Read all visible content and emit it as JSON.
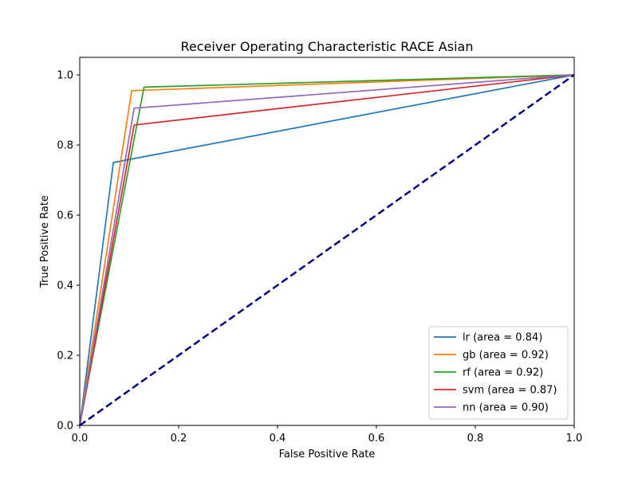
{
  "chart_data": {
    "type": "line",
    "title": "Receiver Operating Characteristic RACE  Asian",
    "xlabel": "False Positive Rate",
    "ylabel": "True Positive Rate",
    "xlim": [
      0.0,
      1.0
    ],
    "ylim": [
      0.0,
      1.05
    ],
    "x_ticks": [
      "0.0",
      "0.2",
      "0.4",
      "0.6",
      "0.8",
      "1.0"
    ],
    "y_ticks": [
      "0.0",
      "0.2",
      "0.4",
      "0.6",
      "0.8",
      "1.0"
    ],
    "grid": false,
    "legend_position": "lower-right",
    "series": [
      {
        "name": "lr (area = 0.84)",
        "color": "#1f77b4",
        "x": [
          0.0,
          0.068,
          1.0
        ],
        "y": [
          0.0,
          0.75,
          1.0
        ]
      },
      {
        "name": "gb (area = 0.92)",
        "color": "#ff7f0e",
        "x": [
          0.0,
          0.105,
          1.0
        ],
        "y": [
          0.0,
          0.955,
          1.0
        ]
      },
      {
        "name": "rf (area = 0.92)",
        "color": "#2ca02c",
        "x": [
          0.0,
          0.13,
          1.0
        ],
        "y": [
          0.0,
          0.965,
          1.0
        ]
      },
      {
        "name": "svm (area = 0.87)",
        "color": "#d62728",
        "x": [
          0.0,
          0.11,
          1.0
        ],
        "y": [
          0.0,
          0.857,
          1.0
        ]
      },
      {
        "name": "nn (area = 0.90)",
        "color": "#9467bd",
        "x": [
          0.0,
          0.11,
          1.0
        ],
        "y": [
          0.0,
          0.905,
          1.0
        ]
      }
    ],
    "reference_line": {
      "color": "#000080",
      "style": "dashed",
      "x": [
        0.0,
        1.0
      ],
      "y": [
        0.0,
        1.0
      ]
    }
  }
}
